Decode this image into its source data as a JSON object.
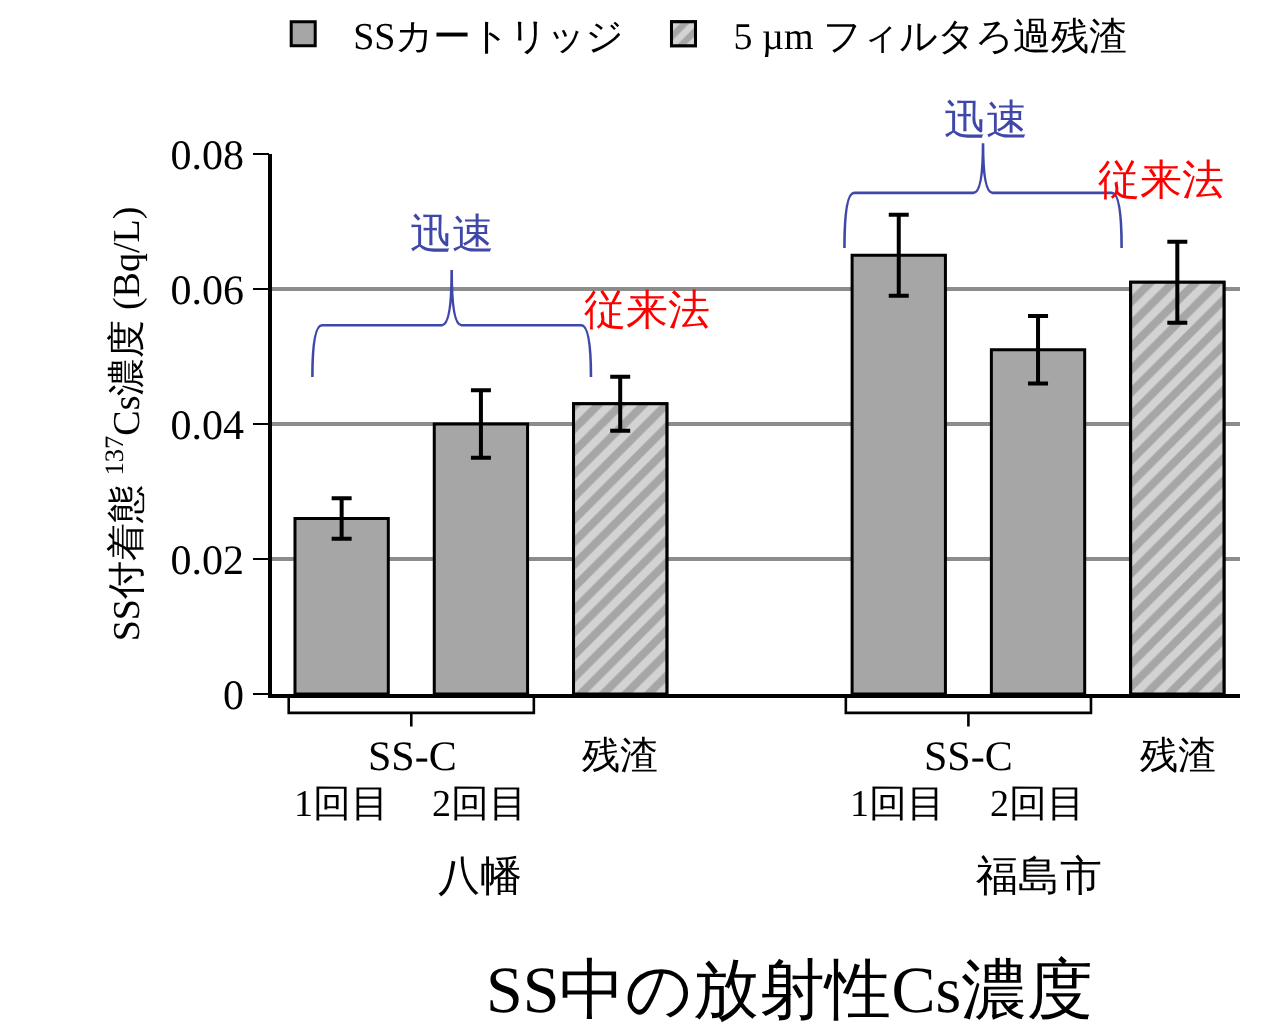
{
  "chart_data": {
    "type": "bar",
    "title": "SS中の放射性Cs濃度",
    "ylabel": "SS付着態 $^{137}$Cs濃度 (Bq/L)",
    "categories": [
      "1回目",
      "2回目",
      "残渣",
      null,
      "1回目",
      "2回目",
      "残渣"
    ],
    "series": [
      {
        "name": "SSカートリッジ",
        "color": "#a6a6a6",
        "values": [
          0.026,
          0.04,
          null,
          null,
          0.065,
          0.051,
          null
        ],
        "errors": [
          0.003,
          0.005,
          null,
          null,
          0.006,
          0.005,
          null
        ]
      },
      {
        "name": "5 µm フィルタろ過残渣",
        "color": "#a6a6a6",
        "values": [
          null,
          null,
          0.043,
          null,
          null,
          null,
          0.061
        ],
        "errors": [
          null,
          null,
          0.004,
          null,
          null,
          null,
          0.006
        ]
      }
    ],
    "annotations": [
      "迅速",
      "従来法",
      "迅速",
      "従来法",
      "SS-C",
      "SS-C",
      "八幡",
      "福島市"
    ],
    "ylim": [
      0,
      0.08
    ],
    "yticks": [
      0,
      0.02,
      0.04,
      0.06,
      0.08
    ],
    "grid": "y",
    "legend": "top"
  }
}
